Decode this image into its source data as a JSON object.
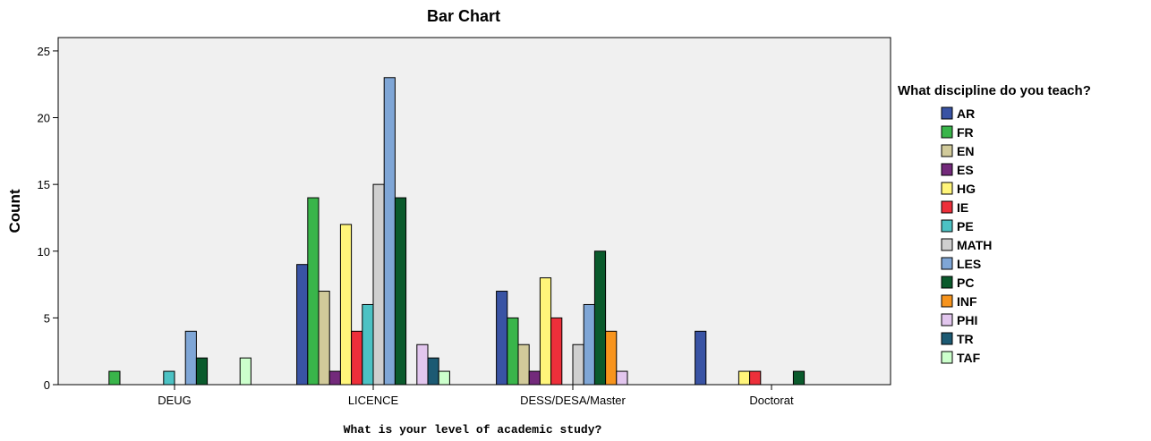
{
  "chart_data": {
    "type": "bar",
    "title": "Bar Chart",
    "xlabel": "What is your level of academic study?",
    "ylabel": "Count",
    "ylim": [
      0,
      26
    ],
    "yticks": [
      0,
      5,
      10,
      15,
      20,
      25
    ],
    "grid": false,
    "plot_background": "#f0f0f0",
    "legend": {
      "title": "What discipline do you teach?",
      "placement": "right"
    },
    "categories": [
      "DEUG",
      "LICENCE",
      "DESS/DESA/Master",
      "Doctorat"
    ],
    "series": [
      {
        "name": "AR",
        "color": "#3953a4",
        "values": [
          0,
          9,
          7,
          4
        ]
      },
      {
        "name": "FR",
        "color": "#39b54a",
        "values": [
          1,
          14,
          5,
          0
        ]
      },
      {
        "name": "EN",
        "color": "#d1ca9a",
        "values": [
          0,
          7,
          3,
          0
        ]
      },
      {
        "name": "ES",
        "color": "#732a7b",
        "values": [
          0,
          1,
          1,
          0
        ]
      },
      {
        "name": "HG",
        "color": "#fff57a",
        "values": [
          0,
          12,
          8,
          1
        ]
      },
      {
        "name": "IE",
        "color": "#ed2f3a",
        "values": [
          0,
          4,
          5,
          1
        ]
      },
      {
        "name": "PE",
        "color": "#4cc2c4",
        "values": [
          1,
          6,
          0,
          0
        ]
      },
      {
        "name": "MATH",
        "color": "#cfcfcf",
        "values": [
          0,
          15,
          3,
          0
        ]
      },
      {
        "name": "LES",
        "color": "#7fa6d6",
        "values": [
          4,
          23,
          6,
          0
        ]
      },
      {
        "name": "PC",
        "color": "#0a5a2c",
        "values": [
          2,
          14,
          10,
          1
        ]
      },
      {
        "name": "INF",
        "color": "#f7941d",
        "values": [
          0,
          0,
          4,
          0
        ]
      },
      {
        "name": "PHI",
        "color": "#e2c6ee",
        "values": [
          0,
          3,
          1,
          0
        ]
      },
      {
        "name": "TR",
        "color": "#1c5a73",
        "values": [
          0,
          2,
          0,
          0
        ]
      },
      {
        "name": "TAF",
        "color": "#ccffcc",
        "values": [
          2,
          1,
          0,
          0
        ]
      }
    ]
  }
}
